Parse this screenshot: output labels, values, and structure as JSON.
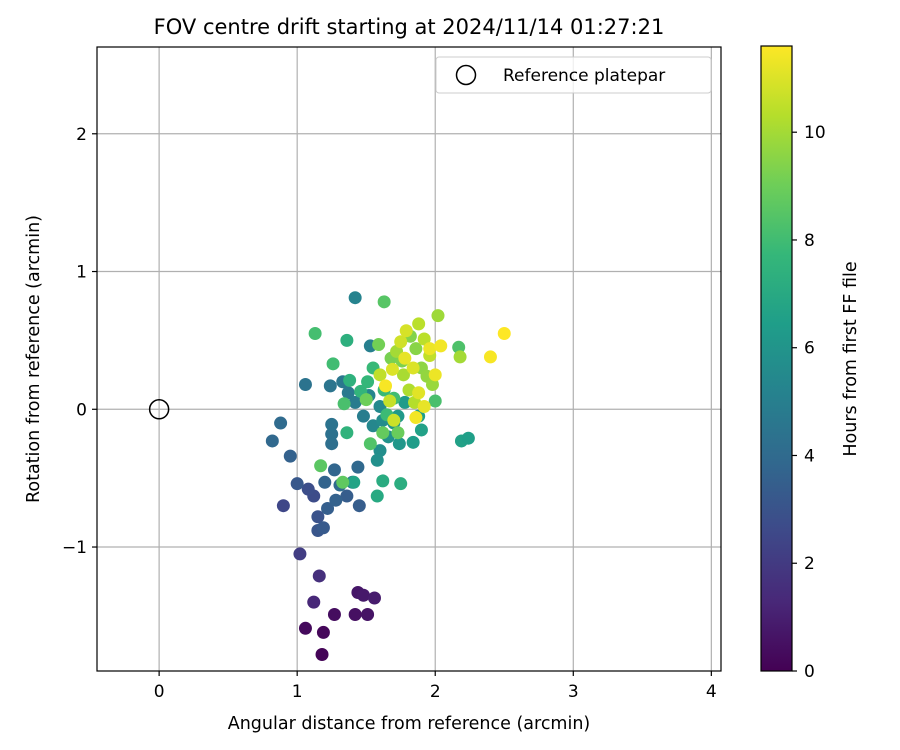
{
  "chart_data": {
    "type": "scatter",
    "title": "FOV centre drift starting at 2024/11/14 01:27:21",
    "xlabel": "Angular distance from reference (arcmin)",
    "ylabel": "Rotation from reference (arcmin)",
    "xlim": [
      -0.45,
      4.07
    ],
    "ylim": [
      -1.9,
      2.63
    ],
    "xticks": [
      0,
      1,
      2,
      3,
      4
    ],
    "xtick_labels": [
      "0",
      "1",
      "2",
      "3",
      "4"
    ],
    "yticks": [
      -1,
      0,
      1,
      2
    ],
    "ytick_labels": [
      "−1",
      "0",
      "1",
      "2"
    ],
    "grid": true,
    "legend": {
      "position": "top-right",
      "entries": [
        {
          "label": "Reference platepar",
          "marker": "open-circle"
        }
      ]
    },
    "reference_point": {
      "x": 0,
      "y": 0
    },
    "colorbar": {
      "label": "Hours from first FF file",
      "colormap": "viridis",
      "range": [
        0,
        11.6
      ],
      "ticks": [
        0,
        2,
        4,
        6,
        8,
        10
      ],
      "tick_labels": [
        "0",
        "2",
        "4",
        "6",
        "8",
        "10"
      ],
      "colors": [
        "#440154",
        "#482878",
        "#3e4989",
        "#31688e",
        "#26828e",
        "#1f9e89",
        "#35b779",
        "#6ece58",
        "#b5de2b",
        "#fde725"
      ]
    },
    "series": [
      {
        "points": [
          {
            "x": 1.18,
            "y": -1.78,
            "h": 0.1
          },
          {
            "x": 1.19,
            "y": -1.62,
            "h": 0.2
          },
          {
            "x": 1.06,
            "y": -1.59,
            "h": 0.3
          },
          {
            "x": 1.27,
            "y": -1.49,
            "h": 0.4
          },
          {
            "x": 1.42,
            "y": -1.49,
            "h": 0.5
          },
          {
            "x": 1.51,
            "y": -1.49,
            "h": 0.6
          },
          {
            "x": 1.44,
            "y": -1.33,
            "h": 0.7
          },
          {
            "x": 1.48,
            "y": -1.35,
            "h": 0.8
          },
          {
            "x": 1.56,
            "y": -1.37,
            "h": 0.9
          },
          {
            "x": 1.12,
            "y": -1.4,
            "h": 1.3
          },
          {
            "x": 1.16,
            "y": -1.21,
            "h": 1.6
          },
          {
            "x": 1.02,
            "y": -1.05,
            "h": 2.1
          },
          {
            "x": 0.9,
            "y": -0.7,
            "h": 2.5
          },
          {
            "x": 1.12,
            "y": -0.63,
            "h": 2.7
          },
          {
            "x": 1.08,
            "y": -0.58,
            "h": 2.8
          },
          {
            "x": 1.15,
            "y": -0.78,
            "h": 3.0
          },
          {
            "x": 1.15,
            "y": -0.88,
            "h": 3.1
          },
          {
            "x": 1.0,
            "y": -0.54,
            "h": 3.2
          },
          {
            "x": 1.19,
            "y": -0.86,
            "h": 3.3
          },
          {
            "x": 1.36,
            "y": -0.63,
            "h": 3.4
          },
          {
            "x": 1.45,
            "y": -0.7,
            "h": 3.4
          },
          {
            "x": 1.22,
            "y": -0.72,
            "h": 3.5
          },
          {
            "x": 1.28,
            "y": -0.66,
            "h": 3.6
          },
          {
            "x": 0.95,
            "y": -0.34,
            "h": 3.6
          },
          {
            "x": 0.82,
            "y": -0.23,
            "h": 3.9
          },
          {
            "x": 0.88,
            "y": -0.1,
            "h": 4.0
          },
          {
            "x": 1.27,
            "y": -0.44,
            "h": 3.8
          },
          {
            "x": 1.2,
            "y": -0.53,
            "h": 3.7
          },
          {
            "x": 1.44,
            "y": -0.42,
            "h": 3.9
          },
          {
            "x": 1.31,
            "y": -0.55,
            "h": 4.0
          },
          {
            "x": 1.4,
            "y": -0.53,
            "h": 4.2
          },
          {
            "x": 1.25,
            "y": -0.25,
            "h": 4.2
          },
          {
            "x": 1.25,
            "y": -0.18,
            "h": 4.3
          },
          {
            "x": 1.25,
            "y": -0.11,
            "h": 4.4
          },
          {
            "x": 1.06,
            "y": 0.18,
            "h": 4.4
          },
          {
            "x": 1.24,
            "y": 0.17,
            "h": 4.5
          },
          {
            "x": 1.33,
            "y": 0.2,
            "h": 4.6
          },
          {
            "x": 1.37,
            "y": 0.12,
            "h": 4.7
          },
          {
            "x": 1.42,
            "y": 0.05,
            "h": 4.8
          },
          {
            "x": 1.48,
            "y": -0.05,
            "h": 4.9
          },
          {
            "x": 1.53,
            "y": 0.46,
            "h": 5.0
          },
          {
            "x": 1.42,
            "y": 0.81,
            "h": 5.2
          },
          {
            "x": 1.52,
            "y": 0.1,
            "h": 5.3
          },
          {
            "x": 1.55,
            "y": -0.12,
            "h": 5.4
          },
          {
            "x": 1.6,
            "y": 0.02,
            "h": 5.5
          },
          {
            "x": 1.62,
            "y": -0.08,
            "h": 5.6
          },
          {
            "x": 1.6,
            "y": -0.3,
            "h": 5.7
          },
          {
            "x": 1.58,
            "y": -0.37,
            "h": 5.8
          },
          {
            "x": 1.66,
            "y": -0.2,
            "h": 5.9
          },
          {
            "x": 1.7,
            "y": -0.1,
            "h": 6.0
          },
          {
            "x": 1.74,
            "y": -0.25,
            "h": 6.1
          },
          {
            "x": 1.73,
            "y": -0.05,
            "h": 6.2
          },
          {
            "x": 1.78,
            "y": 0.05,
            "h": 6.3
          },
          {
            "x": 1.84,
            "y": -0.24,
            "h": 6.4
          },
          {
            "x": 1.88,
            "y": -0.05,
            "h": 6.5
          },
          {
            "x": 1.9,
            "y": -0.15,
            "h": 6.6
          },
          {
            "x": 2.19,
            "y": -0.23,
            "h": 6.6
          },
          {
            "x": 2.24,
            "y": -0.21,
            "h": 6.5
          },
          {
            "x": 1.41,
            "y": -0.53,
            "h": 6.7
          },
          {
            "x": 1.58,
            "y": -0.63,
            "h": 7.0
          },
          {
            "x": 1.62,
            "y": -0.52,
            "h": 7.1
          },
          {
            "x": 1.75,
            "y": -0.54,
            "h": 7.2
          },
          {
            "x": 1.36,
            "y": 0.5,
            "h": 7.3
          },
          {
            "x": 1.38,
            "y": 0.21,
            "h": 7.4
          },
          {
            "x": 1.36,
            "y": -0.17,
            "h": 7.5
          },
          {
            "x": 1.46,
            "y": 0.13,
            "h": 7.6
          },
          {
            "x": 1.51,
            "y": 0.2,
            "h": 7.7
          },
          {
            "x": 1.55,
            "y": 0.3,
            "h": 7.8
          },
          {
            "x": 1.63,
            "y": 0.14,
            "h": 7.8
          },
          {
            "x": 1.65,
            "y": -0.04,
            "h": 7.9
          },
          {
            "x": 1.7,
            "y": 0.08,
            "h": 8.0
          },
          {
            "x": 1.26,
            "y": 0.33,
            "h": 8.0
          },
          {
            "x": 1.13,
            "y": 0.55,
            "h": 8.1
          },
          {
            "x": 1.34,
            "y": 0.04,
            "h": 8.2
          },
          {
            "x": 2.0,
            "y": 0.06,
            "h": 8.2
          },
          {
            "x": 2.17,
            "y": 0.45,
            "h": 8.3
          },
          {
            "x": 1.53,
            "y": -0.25,
            "h": 8.4
          },
          {
            "x": 1.63,
            "y": 0.78,
            "h": 8.5
          },
          {
            "x": 1.17,
            "y": -0.41,
            "h": 8.6
          },
          {
            "x": 1.33,
            "y": -0.53,
            "h": 8.7
          },
          {
            "x": 1.62,
            "y": -0.17,
            "h": 8.8
          },
          {
            "x": 1.73,
            "y": -0.17,
            "h": 8.9
          },
          {
            "x": 1.5,
            "y": 0.07,
            "h": 9.0
          },
          {
            "x": 1.59,
            "y": 0.47,
            "h": 9.1
          },
          {
            "x": 1.68,
            "y": 0.37,
            "h": 9.2
          },
          {
            "x": 1.76,
            "y": 0.35,
            "h": 9.3
          },
          {
            "x": 1.82,
            "y": 0.53,
            "h": 9.4
          },
          {
            "x": 1.86,
            "y": 0.44,
            "h": 9.5
          },
          {
            "x": 1.9,
            "y": 0.3,
            "h": 9.6
          },
          {
            "x": 1.94,
            "y": 0.24,
            "h": 9.7
          },
          {
            "x": 1.98,
            "y": 0.18,
            "h": 9.8
          },
          {
            "x": 2.02,
            "y": 0.68,
            "h": 9.9
          },
          {
            "x": 2.18,
            "y": 0.38,
            "h": 10.0
          },
          {
            "x": 1.72,
            "y": 0.42,
            "h": 10.0
          },
          {
            "x": 1.77,
            "y": 0.25,
            "h": 10.1
          },
          {
            "x": 1.81,
            "y": 0.14,
            "h": 10.2
          },
          {
            "x": 1.85,
            "y": 0.05,
            "h": 10.3
          },
          {
            "x": 1.88,
            "y": 0.62,
            "h": 10.4
          },
          {
            "x": 1.92,
            "y": 0.51,
            "h": 10.4
          },
          {
            "x": 1.96,
            "y": 0.39,
            "h": 10.5
          },
          {
            "x": 1.6,
            "y": 0.25,
            "h": 10.5
          },
          {
            "x": 1.67,
            "y": 0.06,
            "h": 10.6
          },
          {
            "x": 1.7,
            "y": -0.08,
            "h": 10.7
          },
          {
            "x": 1.75,
            "y": 0.49,
            "h": 10.8
          },
          {
            "x": 1.79,
            "y": 0.57,
            "h": 10.9
          },
          {
            "x": 1.84,
            "y": 0.3,
            "h": 11.0
          },
          {
            "x": 1.88,
            "y": 0.12,
            "h": 11.1
          },
          {
            "x": 1.92,
            "y": 0.02,
            "h": 11.2
          },
          {
            "x": 1.96,
            "y": 0.44,
            "h": 11.3
          },
          {
            "x": 2.0,
            "y": 0.25,
            "h": 11.3
          },
          {
            "x": 2.04,
            "y": 0.46,
            "h": 11.4
          },
          {
            "x": 2.4,
            "y": 0.38,
            "h": 11.5
          },
          {
            "x": 2.5,
            "y": 0.55,
            "h": 11.6
          },
          {
            "x": 1.64,
            "y": 0.17,
            "h": 11.5
          },
          {
            "x": 1.86,
            "y": -0.06,
            "h": 11.4
          },
          {
            "x": 1.78,
            "y": 0.37,
            "h": 11.2
          },
          {
            "x": 1.69,
            "y": 0.29,
            "h": 11.0
          }
        ]
      }
    ]
  }
}
